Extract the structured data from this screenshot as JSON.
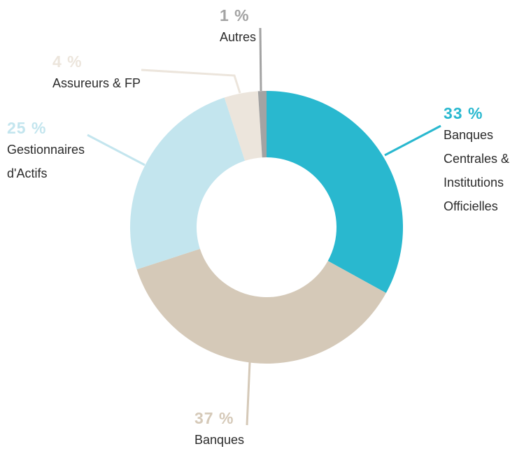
{
  "chart_data": {
    "type": "donut",
    "categories": [
      "Banques Centrales & Institutions Officielles",
      "Banques",
      "Gestionnaires d'Actifs",
      "Assureurs & FP",
      "Autres"
    ],
    "values": [
      33,
      37,
      25,
      4,
      1
    ],
    "value_labels": [
      "33 %",
      "37 %",
      "25 %",
      "4 %",
      "1 %"
    ],
    "colors": [
      "#29b8cf",
      "#d5c9b8",
      "#c3e5ee",
      "#ece5dc",
      "#a3a3a3"
    ]
  }
}
